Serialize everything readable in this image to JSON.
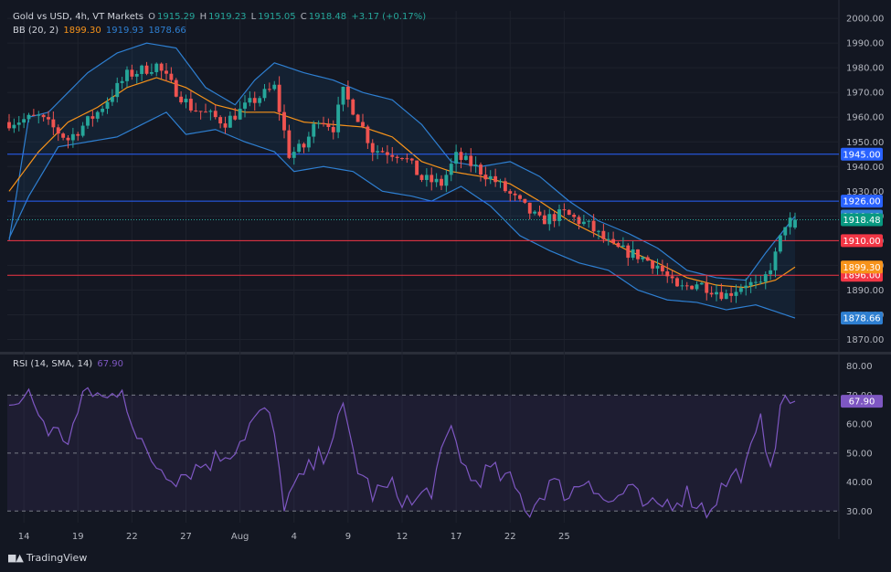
{
  "header": {
    "symbol": "Gold vs USD, 4h, VT Markets",
    "o_label": "O",
    "o": "1915.29",
    "h_label": "H",
    "h": "1919.23",
    "l_label": "L",
    "l": "1915.05",
    "c_label": "C",
    "c": "1918.48",
    "change": "+3.17 (+0.17%)"
  },
  "bb_legend": {
    "label": "BB (20, 2)",
    "basis": "1899.30",
    "upper": "1919.93",
    "lower": "1878.66"
  },
  "rsi_legend": {
    "label": "RSI (14, SMA, 14)",
    "value": "67.90"
  },
  "brand": {
    "name": "TradingView"
  },
  "colors": {
    "background": "#131722",
    "up": "#26a69a",
    "down": "#ef5350",
    "bb_basis": "#f7931a",
    "bb_band": "#2e7fd1",
    "rsi": "#7e57c2",
    "support_blue": "#2962ff",
    "resistance_red": "#f23645"
  },
  "chart_data": [
    {
      "type": "candlestick",
      "title": "Gold vs USD, 4h, VT Markets",
      "x_ticks": [
        "14",
        "19",
        "22",
        "27",
        "Aug",
        "4",
        "9",
        "12",
        "17",
        "22",
        "25"
      ],
      "y_ticks": [
        1870,
        1880,
        1890,
        1900,
        1910,
        1920,
        1930,
        1940,
        1950,
        1960,
        1970,
        1980,
        1990,
        2000
      ],
      "ylim": [
        1865,
        2003
      ],
      "close_path_anchors": [
        [
          0,
          1958
        ],
        [
          6,
          1960
        ],
        [
          12,
          1951
        ],
        [
          18,
          1962
        ],
        [
          24,
          1977
        ],
        [
          30,
          1981
        ],
        [
          33,
          1973
        ],
        [
          37,
          1964
        ],
        [
          44,
          1958
        ],
        [
          50,
          1967
        ],
        [
          54,
          1972
        ],
        [
          57,
          1945
        ],
        [
          60,
          1948
        ],
        [
          63,
          1960
        ],
        [
          66,
          1956
        ],
        [
          68,
          1970
        ],
        [
          71,
          1960
        ],
        [
          74,
          1947
        ],
        [
          80,
          1945
        ],
        [
          84,
          1935
        ],
        [
          88,
          1933
        ],
        [
          91,
          1944
        ],
        [
          94,
          1941
        ],
        [
          99,
          1934
        ],
        [
          104,
          1925
        ],
        [
          108,
          1918
        ],
        [
          113,
          1921
        ],
        [
          118,
          1916
        ],
        [
          123,
          1907
        ],
        [
          128,
          1904
        ],
        [
          132,
          1900
        ],
        [
          136,
          1890
        ],
        [
          140,
          1893
        ],
        [
          146,
          1888
        ],
        [
          150,
          1893
        ],
        [
          153,
          1891
        ],
        [
          156,
          1904
        ],
        [
          158,
          1917
        ],
        [
          160,
          1918.48
        ]
      ],
      "bb_upper_anchors": [
        [
          0,
          1910
        ],
        [
          4,
          1960
        ],
        [
          8,
          1962
        ],
        [
          16,
          1978
        ],
        [
          22,
          1986
        ],
        [
          28,
          1990
        ],
        [
          34,
          1988
        ],
        [
          40,
          1972
        ],
        [
          46,
          1965
        ],
        [
          50,
          1975
        ],
        [
          54,
          1982
        ],
        [
          60,
          1978
        ],
        [
          66,
          1975
        ],
        [
          72,
          1970
        ],
        [
          78,
          1967
        ],
        [
          84,
          1957
        ],
        [
          90,
          1942
        ],
        [
          96,
          1940
        ],
        [
          102,
          1942
        ],
        [
          108,
          1936
        ],
        [
          114,
          1926
        ],
        [
          120,
          1918
        ],
        [
          126,
          1913
        ],
        [
          132,
          1907
        ],
        [
          138,
          1898
        ],
        [
          144,
          1895
        ],
        [
          150,
          1894
        ],
        [
          154,
          1905
        ],
        [
          160,
          1919.93
        ]
      ],
      "bb_basis_anchors": [
        [
          0,
          1930
        ],
        [
          6,
          1946
        ],
        [
          12,
          1958
        ],
        [
          18,
          1964
        ],
        [
          24,
          1972
        ],
        [
          30,
          1976
        ],
        [
          36,
          1972
        ],
        [
          42,
          1965
        ],
        [
          48,
          1962
        ],
        [
          54,
          1962
        ],
        [
          60,
          1958
        ],
        [
          66,
          1957
        ],
        [
          72,
          1956
        ],
        [
          78,
          1952
        ],
        [
          84,
          1942
        ],
        [
          90,
          1938
        ],
        [
          96,
          1936
        ],
        [
          102,
          1933
        ],
        [
          108,
          1926
        ],
        [
          114,
          1918
        ],
        [
          120,
          1912
        ],
        [
          126,
          1906
        ],
        [
          132,
          1901
        ],
        [
          138,
          1895
        ],
        [
          144,
          1892
        ],
        [
          150,
          1891
        ],
        [
          156,
          1894
        ],
        [
          160,
          1899.3
        ]
      ],
      "bb_lower_anchors": [
        [
          0,
          1911
        ],
        [
          4,
          1928
        ],
        [
          10,
          1948
        ],
        [
          16,
          1950
        ],
        [
          22,
          1952
        ],
        [
          28,
          1958
        ],
        [
          32,
          1962
        ],
        [
          36,
          1953
        ],
        [
          42,
          1955
        ],
        [
          48,
          1950
        ],
        [
          54,
          1946
        ],
        [
          58,
          1938
        ],
        [
          64,
          1940
        ],
        [
          70,
          1938
        ],
        [
          76,
          1930
        ],
        [
          82,
          1928
        ],
        [
          86,
          1926
        ],
        [
          92,
          1932
        ],
        [
          98,
          1924
        ],
        [
          104,
          1912
        ],
        [
          110,
          1906
        ],
        [
          116,
          1901
        ],
        [
          122,
          1898
        ],
        [
          128,
          1890
        ],
        [
          134,
          1886
        ],
        [
          140,
          1885
        ],
        [
          146,
          1882
        ],
        [
          152,
          1884
        ],
        [
          158,
          1880
        ],
        [
          160,
          1878.66
        ]
      ],
      "horizontal_levels": [
        {
          "value": 1945,
          "label": "1945.00",
          "color": "#2962ff"
        },
        {
          "value": 1926,
          "label": "1926.00",
          "color": "#2962ff"
        },
        {
          "value": 1910,
          "label": "1910.00",
          "color": "#f23645"
        },
        {
          "value": 1896,
          "label": "1896.00",
          "color": "#f23645"
        }
      ],
      "last_price": {
        "value": 1918.48,
        "label": "1918.48"
      },
      "price_tags": [
        {
          "value": 1919.93,
          "label": "1919.93",
          "color": "#2e7fd1"
        },
        {
          "value": 1899.3,
          "label": "1899.30",
          "color": "#f7931a"
        },
        {
          "value": 1878.66,
          "label": "1878.66",
          "color": "#2e7fd1"
        }
      ]
    },
    {
      "type": "line",
      "title": "RSI (14, SMA, 14)",
      "y_ticks": [
        30,
        40,
        50,
        60,
        70,
        80
      ],
      "ylim": [
        26,
        84
      ],
      "levels": [
        70,
        50,
        30
      ],
      "last_value": {
        "value": 67.9,
        "label": "67.90"
      },
      "series_anchors": [
        [
          0,
          66
        ],
        [
          4,
          70
        ],
        [
          8,
          58
        ],
        [
          12,
          55
        ],
        [
          16,
          72
        ],
        [
          20,
          68
        ],
        [
          23,
          74
        ],
        [
          26,
          54
        ],
        [
          30,
          46
        ],
        [
          34,
          42
        ],
        [
          38,
          45
        ],
        [
          42,
          48
        ],
        [
          46,
          52
        ],
        [
          50,
          62
        ],
        [
          53,
          64
        ],
        [
          56,
          33
        ],
        [
          60,
          42
        ],
        [
          64,
          50
        ],
        [
          68,
          64
        ],
        [
          71,
          45
        ],
        [
          74,
          36
        ],
        [
          78,
          38
        ],
        [
          82,
          32
        ],
        [
          86,
          38
        ],
        [
          90,
          58
        ],
        [
          94,
          40
        ],
        [
          98,
          44
        ],
        [
          102,
          40
        ],
        [
          106,
          30
        ],
        [
          110,
          40
        ],
        [
          114,
          36
        ],
        [
          118,
          42
        ],
        [
          122,
          32
        ],
        [
          126,
          38
        ],
        [
          130,
          30
        ],
        [
          134,
          33
        ],
        [
          138,
          36
        ],
        [
          142,
          30
        ],
        [
          146,
          40
        ],
        [
          150,
          45
        ],
        [
          153,
          60
        ],
        [
          155,
          48
        ],
        [
          158,
          70
        ],
        [
          160,
          67.9
        ]
      ]
    }
  ]
}
